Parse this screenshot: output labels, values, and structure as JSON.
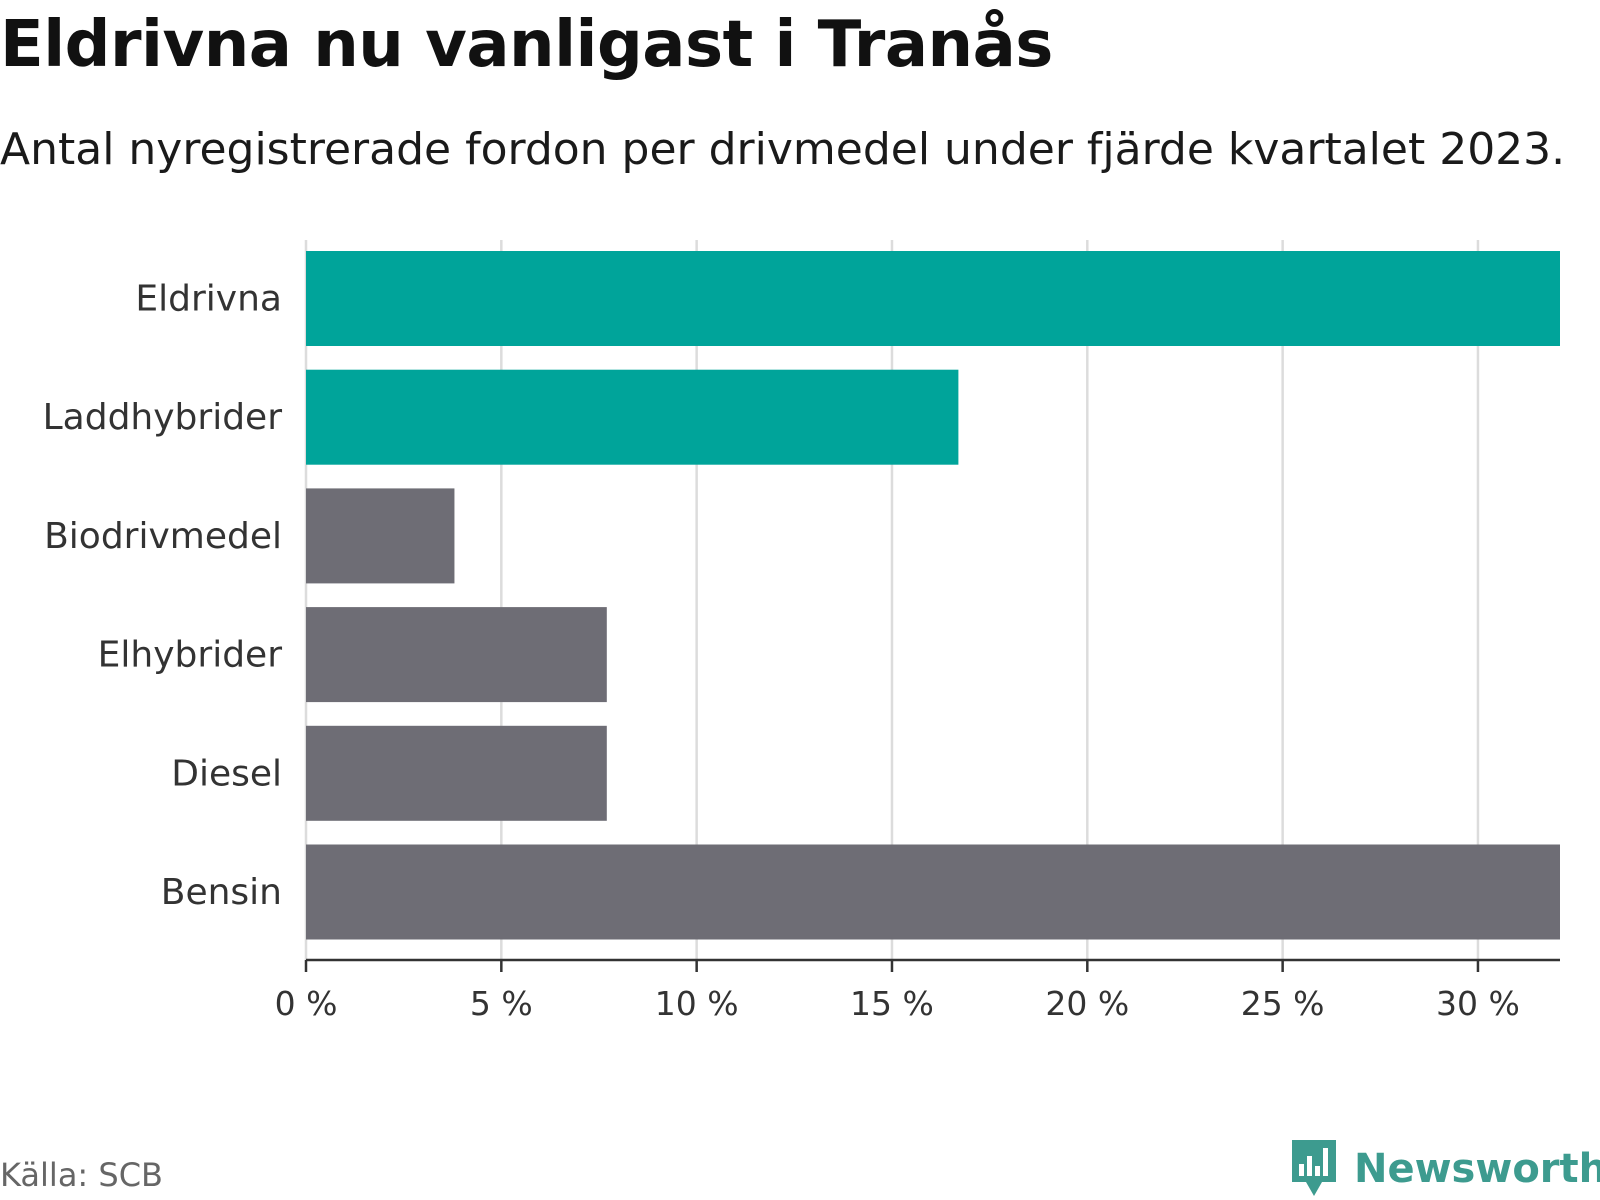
{
  "title": "Eldrivna nu vanligast i Tranås",
  "subtitle": "Antal nyregistrerade fordon per drivmedel under fjärde kvartalet 2023.",
  "source": "Källa: SCB",
  "brand": {
    "name": "Newsworthy",
    "color": "#3d9b8f"
  },
  "chart_data": {
    "type": "bar",
    "orientation": "horizontal",
    "title": "Eldrivna nu vanligast i Tranås",
    "subtitle": "Antal nyregistrerade fordon per drivmedel under fjärde kvartalet 2023.",
    "xlabel": "",
    "ylabel": "",
    "categories": [
      "Eldrivna",
      "Laddhybrider",
      "Biodrivmedel",
      "Elhybrider",
      "Diesel",
      "Bensin"
    ],
    "values": [
      32.1,
      16.7,
      3.8,
      7.7,
      7.7,
      32.1
    ],
    "colors": [
      "#00a49a",
      "#00a49a",
      "#6e6d75",
      "#6e6d75",
      "#6e6d75",
      "#6e6d75"
    ],
    "xlim": [
      0,
      32.1
    ],
    "ticks": [
      0,
      5,
      10,
      15,
      20,
      25,
      30
    ],
    "tick_labels": [
      "0 %",
      "5 %",
      "10 %",
      "15 %",
      "20 %",
      "25 %",
      "30 %"
    ],
    "grid": true
  }
}
